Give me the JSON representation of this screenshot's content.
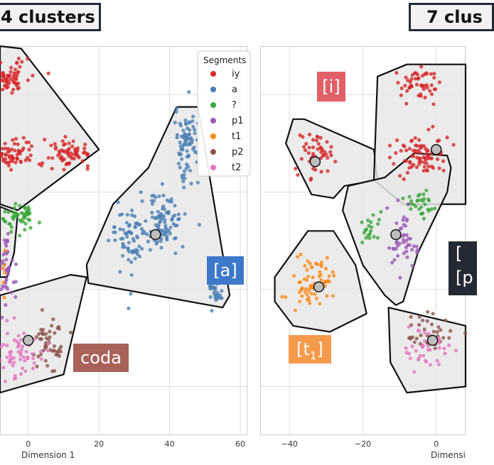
{
  "chart_data": [
    {
      "type": "scatter",
      "title": "4 clusters",
      "xlabel": "Dimension 1",
      "xticks": [
        0,
        20,
        40,
        60
      ],
      "xlim": [
        -8,
        62
      ],
      "ylim": [
        -16,
        16
      ],
      "grid": true,
      "legend": {
        "title": "Segments",
        "placement": "top-right",
        "entries": [
          {
            "name": "iy",
            "color": "#d62728"
          },
          {
            "name": "a",
            "color": "#4c7fb5"
          },
          {
            "name": "?",
            "color": "#3aa83a"
          },
          {
            "name": "p1",
            "color": "#9b59b6"
          },
          {
            "name": "t1",
            "color": "#ff8c1a"
          },
          {
            "name": "p2",
            "color": "#8c564b"
          },
          {
            "name": "t2",
            "color": "#e377c2"
          }
        ]
      },
      "series": [
        {
          "name": "iy",
          "clusters": [
            [
              -5,
              13.5,
              5,
              1.2,
              60
            ],
            [
              -6,
              7,
              10,
              1.3,
              90
            ],
            [
              12,
              7.2,
              5,
              1.0,
              60
            ]
          ]
        },
        {
          "name": "a",
          "clusters": [
            [
              45,
              8,
              3,
              2.5,
              80
            ],
            [
              38,
              1.5,
              6,
              2.0,
              90
            ],
            [
              29,
              0,
              5,
              2.5,
              70
            ],
            [
              53,
              -4,
              2,
              1.5,
              40
            ]
          ]
        },
        {
          "name": "?",
          "clusters": [
            [
              -3,
              2,
              5,
              1.2,
              50
            ]
          ]
        },
        {
          "name": "p1",
          "clusters": [
            [
              -6,
              -2,
              2,
              3,
              40
            ]
          ]
        },
        {
          "name": "t1",
          "clusters": [
            [
              -7,
              -3,
              1,
              2,
              8
            ]
          ]
        },
        {
          "name": "p2",
          "clusters": [
            [
              6,
              -8.5,
              4,
              1.8,
              50
            ]
          ]
        },
        {
          "name": "t2",
          "clusters": [
            [
              -3,
              -9,
              6,
              2,
              60
            ]
          ]
        }
      ],
      "centroids": [
        [
          36,
          0.5
        ],
        [
          0,
          -8.2
        ]
      ],
      "hulls": [
        [
          [
            -8,
            16
          ],
          [
            -2,
            15.8
          ],
          [
            20,
            7.5
          ],
          [
            -3,
            2.5
          ],
          [
            -8,
            3
          ]
        ],
        [
          [
            -8,
            2.8
          ],
          [
            -3,
            2.2
          ],
          [
            -4,
            -1
          ],
          [
            -6,
            -3
          ],
          [
            -8,
            -3
          ]
        ],
        [
          [
            42,
            11
          ],
          [
            48,
            11
          ],
          [
            57,
            -4.5
          ],
          [
            55,
            -5.5
          ],
          [
            17,
            -3.5
          ],
          [
            16.5,
            -2
          ],
          [
            24,
            3
          ],
          [
            34,
            6
          ]
        ],
        [
          [
            -8,
            -4.5
          ],
          [
            12,
            -2.8
          ],
          [
            16.5,
            -3
          ],
          [
            12,
            -8.5
          ],
          [
            10,
            -11
          ],
          [
            -8,
            -12.5
          ]
        ]
      ],
      "annotations": [
        "[a]",
        "coda"
      ]
    },
    {
      "type": "scatter",
      "title": "7 clus",
      "xlabel": "Dimensi",
      "xticks": [
        -40,
        -20,
        0
      ],
      "xlim": [
        -48,
        8
      ],
      "ylim": [
        -16,
        16
      ],
      "grid": true,
      "series": [
        {
          "name": "iy",
          "clusters": [
            [
              -33,
              7,
              4,
              1.8,
              50
            ],
            [
              -5,
              13,
              5,
              1.2,
              50
            ],
            [
              -4,
              7,
              7,
              1.5,
              80
            ]
          ]
        },
        {
          "name": "?",
          "clusters": [
            [
              -5,
              3,
              4,
              1.0,
              30
            ],
            [
              -18,
              1,
              3,
              1.5,
              20
            ]
          ]
        },
        {
          "name": "p1",
          "clusters": [
            [
              -9,
              0,
              4,
              2.0,
              50
            ]
          ]
        },
        {
          "name": "t1",
          "clusters": [
            [
              -34,
              -3.5,
              5,
              1.8,
              70
            ]
          ]
        },
        {
          "name": "p2",
          "clusters": [
            [
              -1,
              -7.5,
              6,
              1.5,
              40
            ]
          ]
        },
        {
          "name": "t2",
          "clusters": [
            [
              -3,
              -9,
              6,
              1.5,
              40
            ]
          ]
        }
      ],
      "centroids": [
        [
          -33,
          6.5
        ],
        [
          0,
          7.5
        ],
        [
          -11,
          0.5
        ],
        [
          -32,
          -3.8
        ],
        [
          -1,
          -8.2
        ]
      ],
      "hulls": [
        [
          [
            -39,
            10
          ],
          [
            -36,
            10
          ],
          [
            -17,
            7.5
          ],
          [
            -16,
            5
          ],
          [
            -25,
            4.5
          ],
          [
            -28,
            3.5
          ],
          [
            -34,
            3.8
          ],
          [
            -41,
            8
          ]
        ],
        [
          [
            -16,
            13.5
          ],
          [
            -8,
            14.5
          ],
          [
            8,
            14.5
          ],
          [
            8,
            3
          ],
          [
            -9,
            3
          ],
          [
            -17,
            5
          ]
        ],
        [
          [
            -6,
            7.2
          ],
          [
            3,
            7
          ],
          [
            4,
            6
          ],
          [
            3,
            4
          ],
          [
            -5,
            -1
          ],
          [
            -9,
            -5
          ],
          [
            -11,
            -5.3
          ],
          [
            -14,
            -4.5
          ],
          [
            -20,
            -2
          ],
          [
            -25.5,
            2.5
          ],
          [
            -24,
            4.5
          ],
          [
            -14,
            5.2
          ]
        ],
        [
          [
            -35,
            0.8
          ],
          [
            -28,
            0.8
          ],
          [
            -22,
            -2
          ],
          [
            -19,
            -6
          ],
          [
            -29,
            -7.5
          ],
          [
            -39,
            -7
          ],
          [
            -44,
            -5
          ],
          [
            -44,
            -3
          ]
        ],
        [
          [
            -13,
            -5.5
          ],
          [
            8,
            -7
          ],
          [
            8,
            -12
          ],
          [
            -8,
            -12.5
          ],
          [
            -12.5,
            -10
          ]
        ]
      ],
      "annotations": [
        "[i]",
        "[t1]",
        "[",
        "[p"
      ]
    }
  ]
}
